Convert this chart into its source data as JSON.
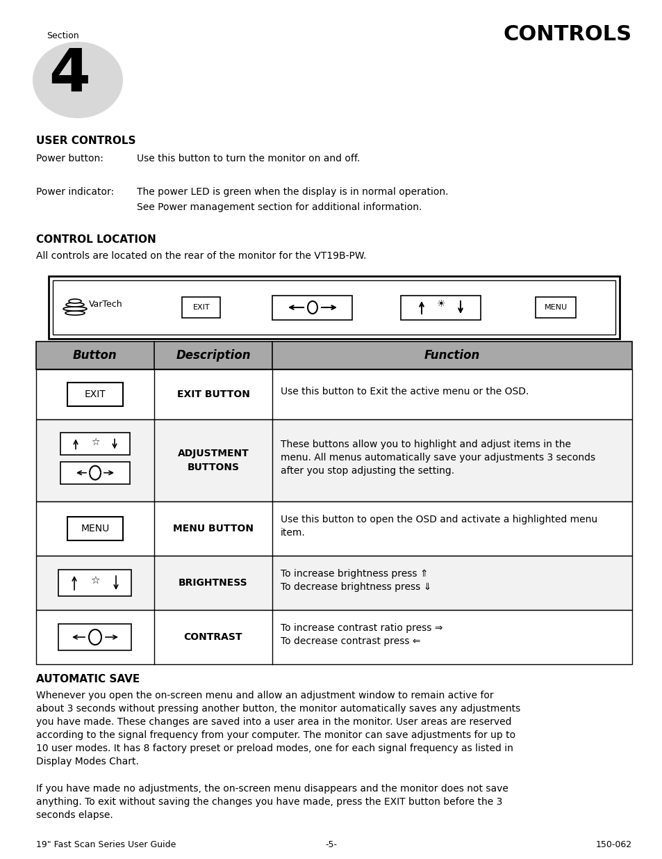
{
  "bg_color": "#ffffff",
  "section_label": "Section",
  "section_number": "4",
  "title": "CONTROLS",
  "user_controls_heading": "USER CONTROLS",
  "power_button_label": "Power button:",
  "power_button_text": "Use this button to turn the monitor on and off.",
  "power_indicator_label": "Power indicator:",
  "power_indicator_line1": "The power LED is green when the display is in normal operation.",
  "power_indicator_line2": "See Power management section for additional information.",
  "control_location_heading": "CONTROL LOCATION",
  "control_location_text": "All controls are located on the rear of the monitor for the VT19B-PW.",
  "table_header": [
    "Button",
    "Description",
    "Function"
  ],
  "table_rows": [
    {
      "button_label": "EXIT",
      "description": "EXIT BUTTON",
      "function_lines": [
        "Use this button to Exit the active menu or the OSD."
      ]
    },
    {
      "button_label": "ADJ",
      "description": "ADJUSTMENT\nBUTTONS",
      "function_lines": [
        "These buttons allow you to highlight and adjust items in the",
        "menu. All menus automatically save your adjustments 3 seconds",
        "after you stop adjusting the setting."
      ]
    },
    {
      "button_label": "MENU",
      "description": "MENU BUTTON",
      "function_lines": [
        "Use this button to open the OSD and activate a highlighted menu",
        "item."
      ]
    },
    {
      "button_label": "BRIGHTNESS",
      "description": "BRIGHTNESS",
      "function_lines": [
        "To increase brightness press ⇑",
        "To decrease brightness press ⇓"
      ]
    },
    {
      "button_label": "CONTRAST",
      "description": "CONTRAST",
      "function_lines": [
        "To increase contrast ratio press ⇒",
        "To decrease contrast press ⇐"
      ]
    }
  ],
  "auto_save_heading": "AUTOMATIC SAVE",
  "auto_save_para1_lines": [
    "Whenever you open the on-screen menu and allow an adjustment window to remain active for",
    "about 3 seconds without pressing another button, the monitor automatically saves any adjustments",
    "you have made. These changes are saved into a user area in the monitor. User areas are reserved",
    "according to the signal frequency from your computer. The monitor can save adjustments for up to",
    "10 user modes. It has 8 factory preset or preload modes, one for each signal frequency as listed in",
    "Display Modes Chart."
  ],
  "auto_save_para2_lines": [
    "If you have made no adjustments, the on-screen menu disappears and the monitor does not save",
    "anything. To exit without saving the changes you have made, press the EXIT button before the 3",
    "seconds elapse."
  ],
  "footer_left": "19\" Fast Scan Series User Guide",
  "footer_center": "-5-",
  "footer_right": "150-062",
  "header_bg": "#a0a0a0",
  "row_bg_even": "#ffffff",
  "row_bg_odd": "#f2f2f2"
}
